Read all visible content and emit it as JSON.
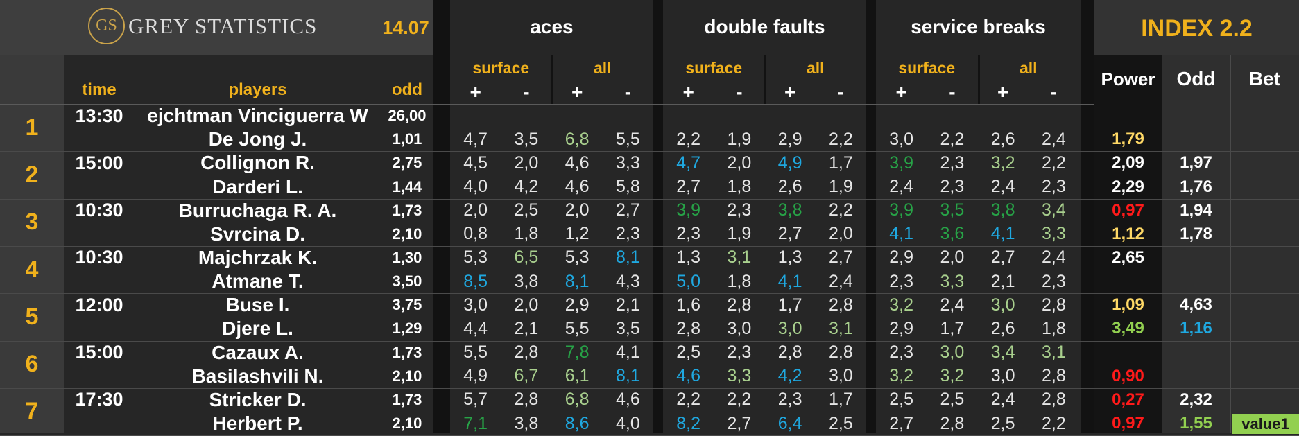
{
  "header": {
    "logo_text": "GS",
    "brand": "GREY STATISTICS",
    "date": "14.07",
    "groups": [
      "aces",
      "double faults",
      "service breaks"
    ],
    "index_title": "INDEX 2.2",
    "sub_surface": "surface",
    "sub_all": "all",
    "plus": "+",
    "minus": "-",
    "col_time": "time",
    "col_players": "players",
    "col_odd": "odd",
    "col_power": "Power",
    "col_odd2": "Odd",
    "col_bet": "Bet"
  },
  "colors": {
    "white": "#e6e6e6",
    "blue": "#1fa8e0",
    "green": "#27a347",
    "lightgreen": "#a9d08e",
    "yellow": "#ffd966",
    "red": "#ff1a1a",
    "brightgreen": "#92d050",
    "gold": "#f0b11c"
  },
  "matches": [
    {
      "num": "1",
      "time": "13:30",
      "players": [
        {
          "name": "ejchtman Vinciguerra W",
          "odd": "26,00",
          "stats": [],
          "power": null,
          "odd2": null,
          "bet": null
        },
        {
          "name": "De Jong J.",
          "odd": "1,01",
          "stats": [
            [
              "4,7",
              "w"
            ],
            [
              "3,5",
              "w"
            ],
            [
              "6,8",
              "lg"
            ],
            [
              "5,5",
              "w"
            ],
            [
              "2,2",
              "w"
            ],
            [
              "1,9",
              "w"
            ],
            [
              "2,9",
              "w"
            ],
            [
              "2,2",
              "w"
            ],
            [
              "3,0",
              "w"
            ],
            [
              "2,2",
              "w"
            ],
            [
              "2,6",
              "w"
            ],
            [
              "2,4",
              "w"
            ]
          ],
          "power": [
            "1,79",
            "y"
          ],
          "odd2": null,
          "bet": null
        }
      ]
    },
    {
      "num": "2",
      "time": "15:00",
      "players": [
        {
          "name": "Collignon R.",
          "odd": "2,75",
          "stats": [
            [
              "4,5",
              "w"
            ],
            [
              "2,0",
              "w"
            ],
            [
              "4,6",
              "w"
            ],
            [
              "3,3",
              "w"
            ],
            [
              "4,7",
              "b"
            ],
            [
              "2,0",
              "w"
            ],
            [
              "4,9",
              "b"
            ],
            [
              "1,7",
              "w"
            ],
            [
              "3,9",
              "g"
            ],
            [
              "2,3",
              "w"
            ],
            [
              "3,2",
              "lg"
            ],
            [
              "2,2",
              "w"
            ]
          ],
          "power": [
            "2,09",
            "wh"
          ],
          "odd2": [
            "1,97",
            "wh"
          ],
          "bet": null
        },
        {
          "name": "Darderi L.",
          "odd": "1,44",
          "stats": [
            [
              "4,0",
              "w"
            ],
            [
              "4,2",
              "w"
            ],
            [
              "4,6",
              "w"
            ],
            [
              "5,8",
              "w"
            ],
            [
              "2,7",
              "w"
            ],
            [
              "1,8",
              "w"
            ],
            [
              "2,6",
              "w"
            ],
            [
              "1,9",
              "w"
            ],
            [
              "2,4",
              "w"
            ],
            [
              "2,3",
              "w"
            ],
            [
              "2,4",
              "w"
            ],
            [
              "2,3",
              "w"
            ]
          ],
          "power": [
            "2,29",
            "wh"
          ],
          "odd2": [
            "1,76",
            "wh"
          ],
          "bet": null
        }
      ]
    },
    {
      "num": "3",
      "time": "10:30",
      "players": [
        {
          "name": "Burruchaga R. A.",
          "odd": "1,73",
          "stats": [
            [
              "2,0",
              "w"
            ],
            [
              "2,5",
              "w"
            ],
            [
              "2,0",
              "w"
            ],
            [
              "2,7",
              "w"
            ],
            [
              "3,9",
              "g"
            ],
            [
              "2,3",
              "w"
            ],
            [
              "3,8",
              "g"
            ],
            [
              "2,2",
              "w"
            ],
            [
              "3,9",
              "g"
            ],
            [
              "3,5",
              "g"
            ],
            [
              "3,8",
              "g"
            ],
            [
              "3,4",
              "lg"
            ]
          ],
          "power": [
            "0,97",
            "r"
          ],
          "odd2": [
            "1,94",
            "wh"
          ],
          "bet": null
        },
        {
          "name": "Svrcina D.",
          "odd": "2,10",
          "stats": [
            [
              "0,8",
              "w"
            ],
            [
              "1,8",
              "w"
            ],
            [
              "1,2",
              "w"
            ],
            [
              "2,3",
              "w"
            ],
            [
              "2,3",
              "w"
            ],
            [
              "1,9",
              "w"
            ],
            [
              "2,7",
              "w"
            ],
            [
              "2,0",
              "w"
            ],
            [
              "4,1",
              "b"
            ],
            [
              "3,6",
              "g"
            ],
            [
              "4,1",
              "b"
            ],
            [
              "3,3",
              "lg"
            ]
          ],
          "power": [
            "1,12",
            "y"
          ],
          "odd2": [
            "1,78",
            "wh"
          ],
          "bet": null
        }
      ]
    },
    {
      "num": "4",
      "time": "10:30",
      "players": [
        {
          "name": "Majchrzak K.",
          "odd": "1,30",
          "stats": [
            [
              "5,3",
              "w"
            ],
            [
              "6,5",
              "lg"
            ],
            [
              "5,3",
              "w"
            ],
            [
              "8,1",
              "b"
            ],
            [
              "1,3",
              "w"
            ],
            [
              "3,1",
              "lg"
            ],
            [
              "1,3",
              "w"
            ],
            [
              "2,7",
              "w"
            ],
            [
              "2,9",
              "w"
            ],
            [
              "2,0",
              "w"
            ],
            [
              "2,7",
              "w"
            ],
            [
              "2,4",
              "w"
            ]
          ],
          "power": [
            "2,65",
            "wh"
          ],
          "odd2": null,
          "bet": null
        },
        {
          "name": "Atmane T.",
          "odd": "3,50",
          "stats": [
            [
              "8,5",
              "b"
            ],
            [
              "3,8",
              "w"
            ],
            [
              "8,1",
              "b"
            ],
            [
              "4,3",
              "w"
            ],
            [
              "5,0",
              "b"
            ],
            [
              "1,8",
              "w"
            ],
            [
              "4,1",
              "b"
            ],
            [
              "2,4",
              "w"
            ],
            [
              "2,3",
              "w"
            ],
            [
              "3,3",
              "lg"
            ],
            [
              "2,1",
              "w"
            ],
            [
              "2,3",
              "w"
            ]
          ],
          "power": null,
          "odd2": null,
          "bet": null
        }
      ]
    },
    {
      "num": "5",
      "time": "12:00",
      "players": [
        {
          "name": "Buse I.",
          "odd": "3,75",
          "stats": [
            [
              "3,0",
              "w"
            ],
            [
              "2,0",
              "w"
            ],
            [
              "2,9",
              "w"
            ],
            [
              "2,1",
              "w"
            ],
            [
              "1,6",
              "w"
            ],
            [
              "2,8",
              "w"
            ],
            [
              "1,7",
              "w"
            ],
            [
              "2,8",
              "w"
            ],
            [
              "3,2",
              "lg"
            ],
            [
              "2,4",
              "w"
            ],
            [
              "3,0",
              "lg"
            ],
            [
              "2,8",
              "w"
            ]
          ],
          "power": [
            "1,09",
            "y"
          ],
          "odd2": [
            "4,63",
            "wh"
          ],
          "bet": null
        },
        {
          "name": "Djere L.",
          "odd": "1,29",
          "stats": [
            [
              "4,4",
              "w"
            ],
            [
              "2,1",
              "w"
            ],
            [
              "5,5",
              "w"
            ],
            [
              "3,5",
              "w"
            ],
            [
              "2,8",
              "w"
            ],
            [
              "3,0",
              "w"
            ],
            [
              "3,0",
              "lg"
            ],
            [
              "3,1",
              "lg"
            ],
            [
              "2,9",
              "w"
            ],
            [
              "1,7",
              "w"
            ],
            [
              "2,6",
              "w"
            ],
            [
              "1,8",
              "w"
            ]
          ],
          "power": [
            "3,49",
            "bg"
          ],
          "odd2": [
            "1,16",
            "b"
          ],
          "bet": null
        }
      ]
    },
    {
      "num": "6",
      "time": "15:00",
      "players": [
        {
          "name": "Cazaux A.",
          "odd": "1,73",
          "stats": [
            [
              "5,5",
              "w"
            ],
            [
              "2,8",
              "w"
            ],
            [
              "7,8",
              "g"
            ],
            [
              "4,1",
              "w"
            ],
            [
              "2,5",
              "w"
            ],
            [
              "2,3",
              "w"
            ],
            [
              "2,8",
              "w"
            ],
            [
              "2,8",
              "w"
            ],
            [
              "2,3",
              "w"
            ],
            [
              "3,0",
              "lg"
            ],
            [
              "3,4",
              "lg"
            ],
            [
              "3,1",
              "lg"
            ]
          ],
          "power": null,
          "odd2": null,
          "bet": null
        },
        {
          "name": "Basilashvili N.",
          "odd": "2,10",
          "stats": [
            [
              "4,9",
              "w"
            ],
            [
              "6,7",
              "lg"
            ],
            [
              "6,1",
              "lg"
            ],
            [
              "8,1",
              "b"
            ],
            [
              "4,6",
              "b"
            ],
            [
              "3,3",
              "lg"
            ],
            [
              "4,2",
              "b"
            ],
            [
              "3,0",
              "w"
            ],
            [
              "3,2",
              "lg"
            ],
            [
              "3,2",
              "lg"
            ],
            [
              "3,0",
              "w"
            ],
            [
              "2,8",
              "w"
            ]
          ],
          "power": [
            "0,90",
            "r"
          ],
          "odd2": null,
          "bet": null
        }
      ]
    },
    {
      "num": "7",
      "time": "17:30",
      "players": [
        {
          "name": "Stricker D.",
          "odd": "1,73",
          "stats": [
            [
              "5,7",
              "w"
            ],
            [
              "2,8",
              "w"
            ],
            [
              "6,8",
              "lg"
            ],
            [
              "4,6",
              "w"
            ],
            [
              "2,2",
              "w"
            ],
            [
              "2,2",
              "w"
            ],
            [
              "2,3",
              "w"
            ],
            [
              "1,7",
              "w"
            ],
            [
              "2,5",
              "w"
            ],
            [
              "2,5",
              "w"
            ],
            [
              "2,4",
              "w"
            ],
            [
              "2,8",
              "w"
            ]
          ],
          "power": [
            "0,27",
            "r"
          ],
          "odd2": [
            "2,32",
            "wh"
          ],
          "bet": null
        },
        {
          "name": "Herbert P.",
          "odd": "2,10",
          "stats": [
            [
              "7,1",
              "g"
            ],
            [
              "3,8",
              "w"
            ],
            [
              "8,6",
              "b"
            ],
            [
              "4,0",
              "w"
            ],
            [
              "8,2",
              "b"
            ],
            [
              "2,7",
              "w"
            ],
            [
              "6,4",
              "b"
            ],
            [
              "2,5",
              "w"
            ],
            [
              "2,7",
              "w"
            ],
            [
              "2,8",
              "w"
            ],
            [
              "2,5",
              "w"
            ],
            [
              "2,2",
              "w"
            ]
          ],
          "power": [
            "0,97",
            "r"
          ],
          "odd2": [
            "1,55",
            "bg"
          ],
          "bet": "value1"
        }
      ]
    }
  ]
}
